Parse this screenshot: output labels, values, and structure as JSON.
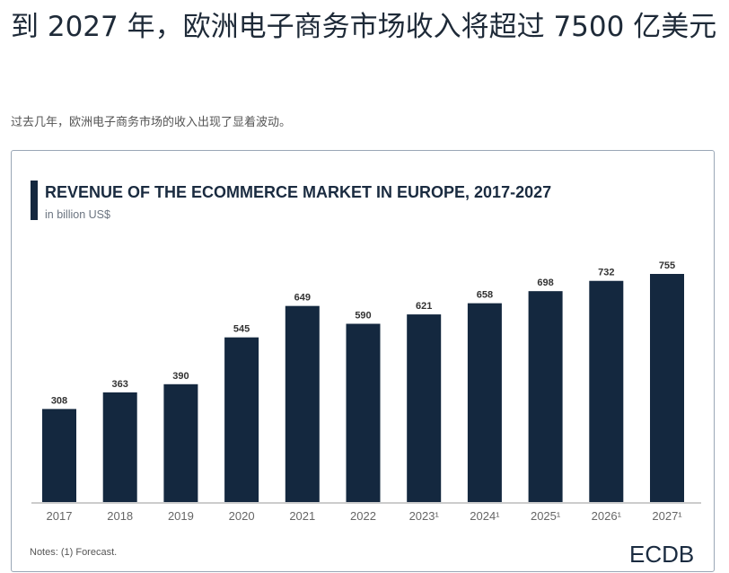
{
  "header": {
    "title": "到 2027 年，欧洲电子商务市场收入将超过 7500 亿美元",
    "subtitle": "过去几年，欧洲电子商务市场的收入出现了显着波动。"
  },
  "chart_data": {
    "type": "bar",
    "title": "REVENUE OF THE ECOMMERCE MARKET IN EUROPE, 2017-2027",
    "subtitle": "in billion US$",
    "categories": [
      "2017",
      "2018",
      "2019",
      "2020",
      "2021",
      "2022",
      "2023¹",
      "2024¹",
      "2025¹",
      "2026¹",
      "2027¹"
    ],
    "values": [
      308,
      363,
      390,
      545,
      649,
      590,
      621,
      658,
      698,
      732,
      755
    ],
    "xlabel": "",
    "ylabel": "in billion US$",
    "ylim": [
      0,
      755
    ],
    "notes": "Notes: (1) Forecast.",
    "source_logo": "ECDB",
    "bar_color": "#14283f"
  }
}
